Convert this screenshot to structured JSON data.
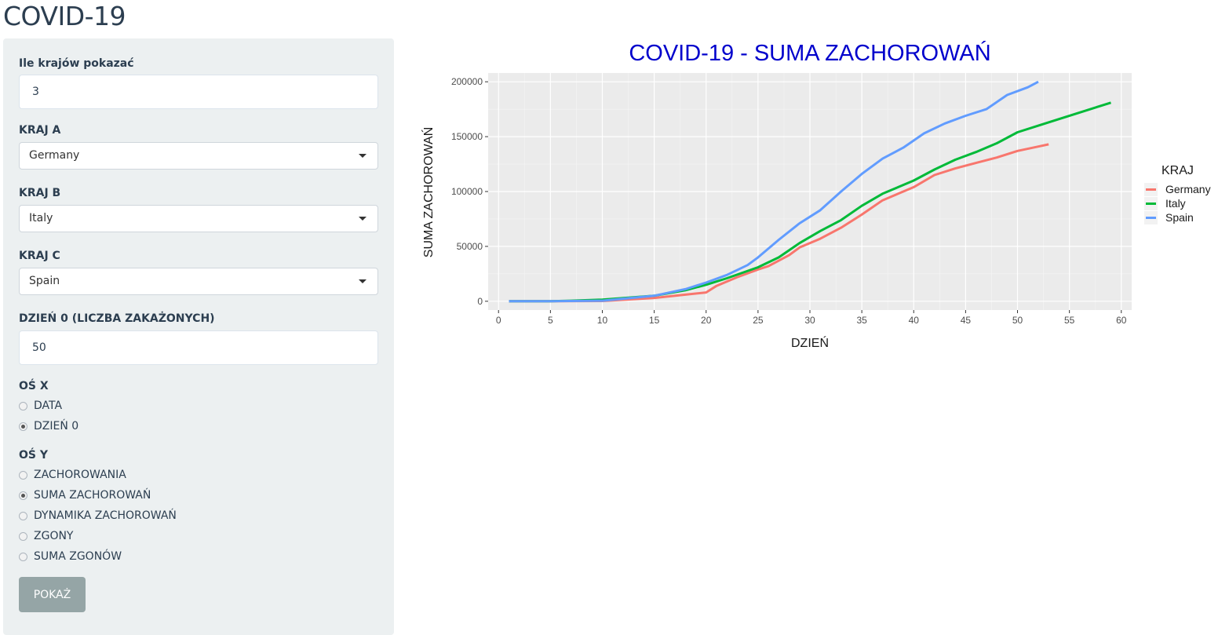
{
  "app": {
    "title": "COVID-19"
  },
  "sidebar": {
    "count_label": "Ile krajów pokazać",
    "count_value": "3",
    "country_a": {
      "label": "KRAJ A",
      "value": "Germany"
    },
    "country_b": {
      "label": "KRAJ B",
      "value": "Italy"
    },
    "country_c": {
      "label": "KRAJ C",
      "value": "Spain"
    },
    "day0_label": "DZIEŃ 0 (LICZBA ZAKAŻONYCH)",
    "day0_value": "50",
    "x_axis": {
      "label": "OŚ X",
      "options": [
        {
          "label": "DATA",
          "checked": false
        },
        {
          "label": "DZIEŃ 0",
          "checked": true
        }
      ]
    },
    "y_axis": {
      "label": "OŚ Y",
      "options": [
        {
          "label": "ZACHOROWANIA",
          "checked": false
        },
        {
          "label": "SUMA ZACHOROWAŃ",
          "checked": true
        },
        {
          "label": "DYNAMIKA ZACHOROWAŃ",
          "checked": false
        },
        {
          "label": "ZGONY",
          "checked": false
        },
        {
          "label": "SUMA ZGONÓW",
          "checked": false
        }
      ]
    },
    "submit_label": "POKAŻ"
  },
  "chart_data": {
    "type": "line",
    "title": "COVID-19 -  SUMA ZACHOROWAŃ",
    "xlabel": "DZIEŃ",
    "ylabel": "SUMA ZACHOROWAŃ",
    "xlim": [
      -1,
      61
    ],
    "ylim": [
      -8000,
      208000
    ],
    "x_ticks": [
      0,
      5,
      10,
      15,
      20,
      25,
      30,
      35,
      40,
      45,
      50,
      55,
      60
    ],
    "y_ticks": [
      0,
      50000,
      100000,
      150000,
      200000
    ],
    "legend_title": "KRAJ",
    "legend_position": "right",
    "grid": true,
    "title_color": "#0000cc",
    "series": [
      {
        "name": "Germany",
        "color": "#F8766D",
        "points": [
          [
            1,
            0
          ],
          [
            5,
            0
          ],
          [
            10,
            200
          ],
          [
            15,
            3000
          ],
          [
            18,
            6000
          ],
          [
            20,
            8000
          ],
          [
            21,
            14000
          ],
          [
            23,
            22000
          ],
          [
            25,
            29000
          ],
          [
            26,
            32000
          ],
          [
            28,
            42000
          ],
          [
            29,
            49000
          ],
          [
            31,
            57000
          ],
          [
            33,
            67000
          ],
          [
            35,
            79000
          ],
          [
            37,
            92000
          ],
          [
            40,
            104000
          ],
          [
            42,
            115000
          ],
          [
            44,
            121000
          ],
          [
            46,
            126000
          ],
          [
            48,
            131000
          ],
          [
            50,
            137000
          ],
          [
            52,
            141000
          ],
          [
            53,
            143000
          ]
        ]
      },
      {
        "name": "Italy",
        "color": "#00BA38",
        "points": [
          [
            1,
            0
          ],
          [
            5,
            0
          ],
          [
            7,
            500
          ],
          [
            10,
            1500
          ],
          [
            15,
            5000
          ],
          [
            18,
            10000
          ],
          [
            20,
            15000
          ],
          [
            22,
            21000
          ],
          [
            25,
            31000
          ],
          [
            27,
            40000
          ],
          [
            29,
            53000
          ],
          [
            31,
            64000
          ],
          [
            33,
            74000
          ],
          [
            35,
            87000
          ],
          [
            37,
            98000
          ],
          [
            40,
            110000
          ],
          [
            42,
            120000
          ],
          [
            44,
            129000
          ],
          [
            46,
            136000
          ],
          [
            48,
            144000
          ],
          [
            50,
            154000
          ],
          [
            52,
            160000
          ],
          [
            54,
            166000
          ],
          [
            56,
            172000
          ],
          [
            58,
            178000
          ],
          [
            59,
            181000
          ]
        ]
      },
      {
        "name": "Spain",
        "color": "#619CFF",
        "points": [
          [
            1,
            0
          ],
          [
            5,
            0
          ],
          [
            10,
            500
          ],
          [
            15,
            5000
          ],
          [
            18,
            11000
          ],
          [
            20,
            17000
          ],
          [
            22,
            24000
          ],
          [
            24,
            33000
          ],
          [
            25,
            40000
          ],
          [
            27,
            56000
          ],
          [
            29,
            71000
          ],
          [
            31,
            83000
          ],
          [
            33,
            100000
          ],
          [
            35,
            116000
          ],
          [
            37,
            130000
          ],
          [
            39,
            140000
          ],
          [
            41,
            153000
          ],
          [
            43,
            162000
          ],
          [
            45,
            169000
          ],
          [
            47,
            175000
          ],
          [
            49,
            188000
          ],
          [
            51,
            195000
          ],
          [
            52,
            200000
          ]
        ]
      }
    ]
  }
}
